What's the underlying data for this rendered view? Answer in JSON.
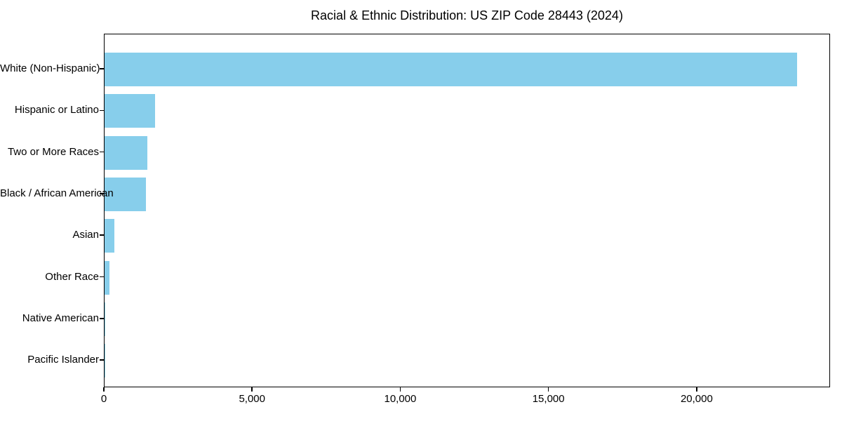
{
  "chart_data": {
    "type": "bar",
    "orientation": "horizontal",
    "title": "Racial & Ethnic Distribution: US ZIP Code 28443 (2024)",
    "categories": [
      "White (Non-Hispanic)",
      "Hispanic or Latino",
      "Two or More Races",
      "Black / African American",
      "Asian",
      "Other Race",
      "Native American",
      "Pacific Islander"
    ],
    "values": [
      23400,
      1700,
      1450,
      1400,
      330,
      165,
      25,
      5
    ],
    "xlabel": "",
    "ylabel": "",
    "xlim": [
      0,
      24500
    ],
    "xticks": [
      0,
      5000,
      10000,
      15000,
      20000
    ],
    "xtick_labels": [
      "0",
      "5,000",
      "10,000",
      "15,000",
      "20,000"
    ],
    "bar_color": "#87CEEB",
    "axis_color": "#000000",
    "background_color": "#ffffff",
    "grid": false,
    "legend": false
  }
}
